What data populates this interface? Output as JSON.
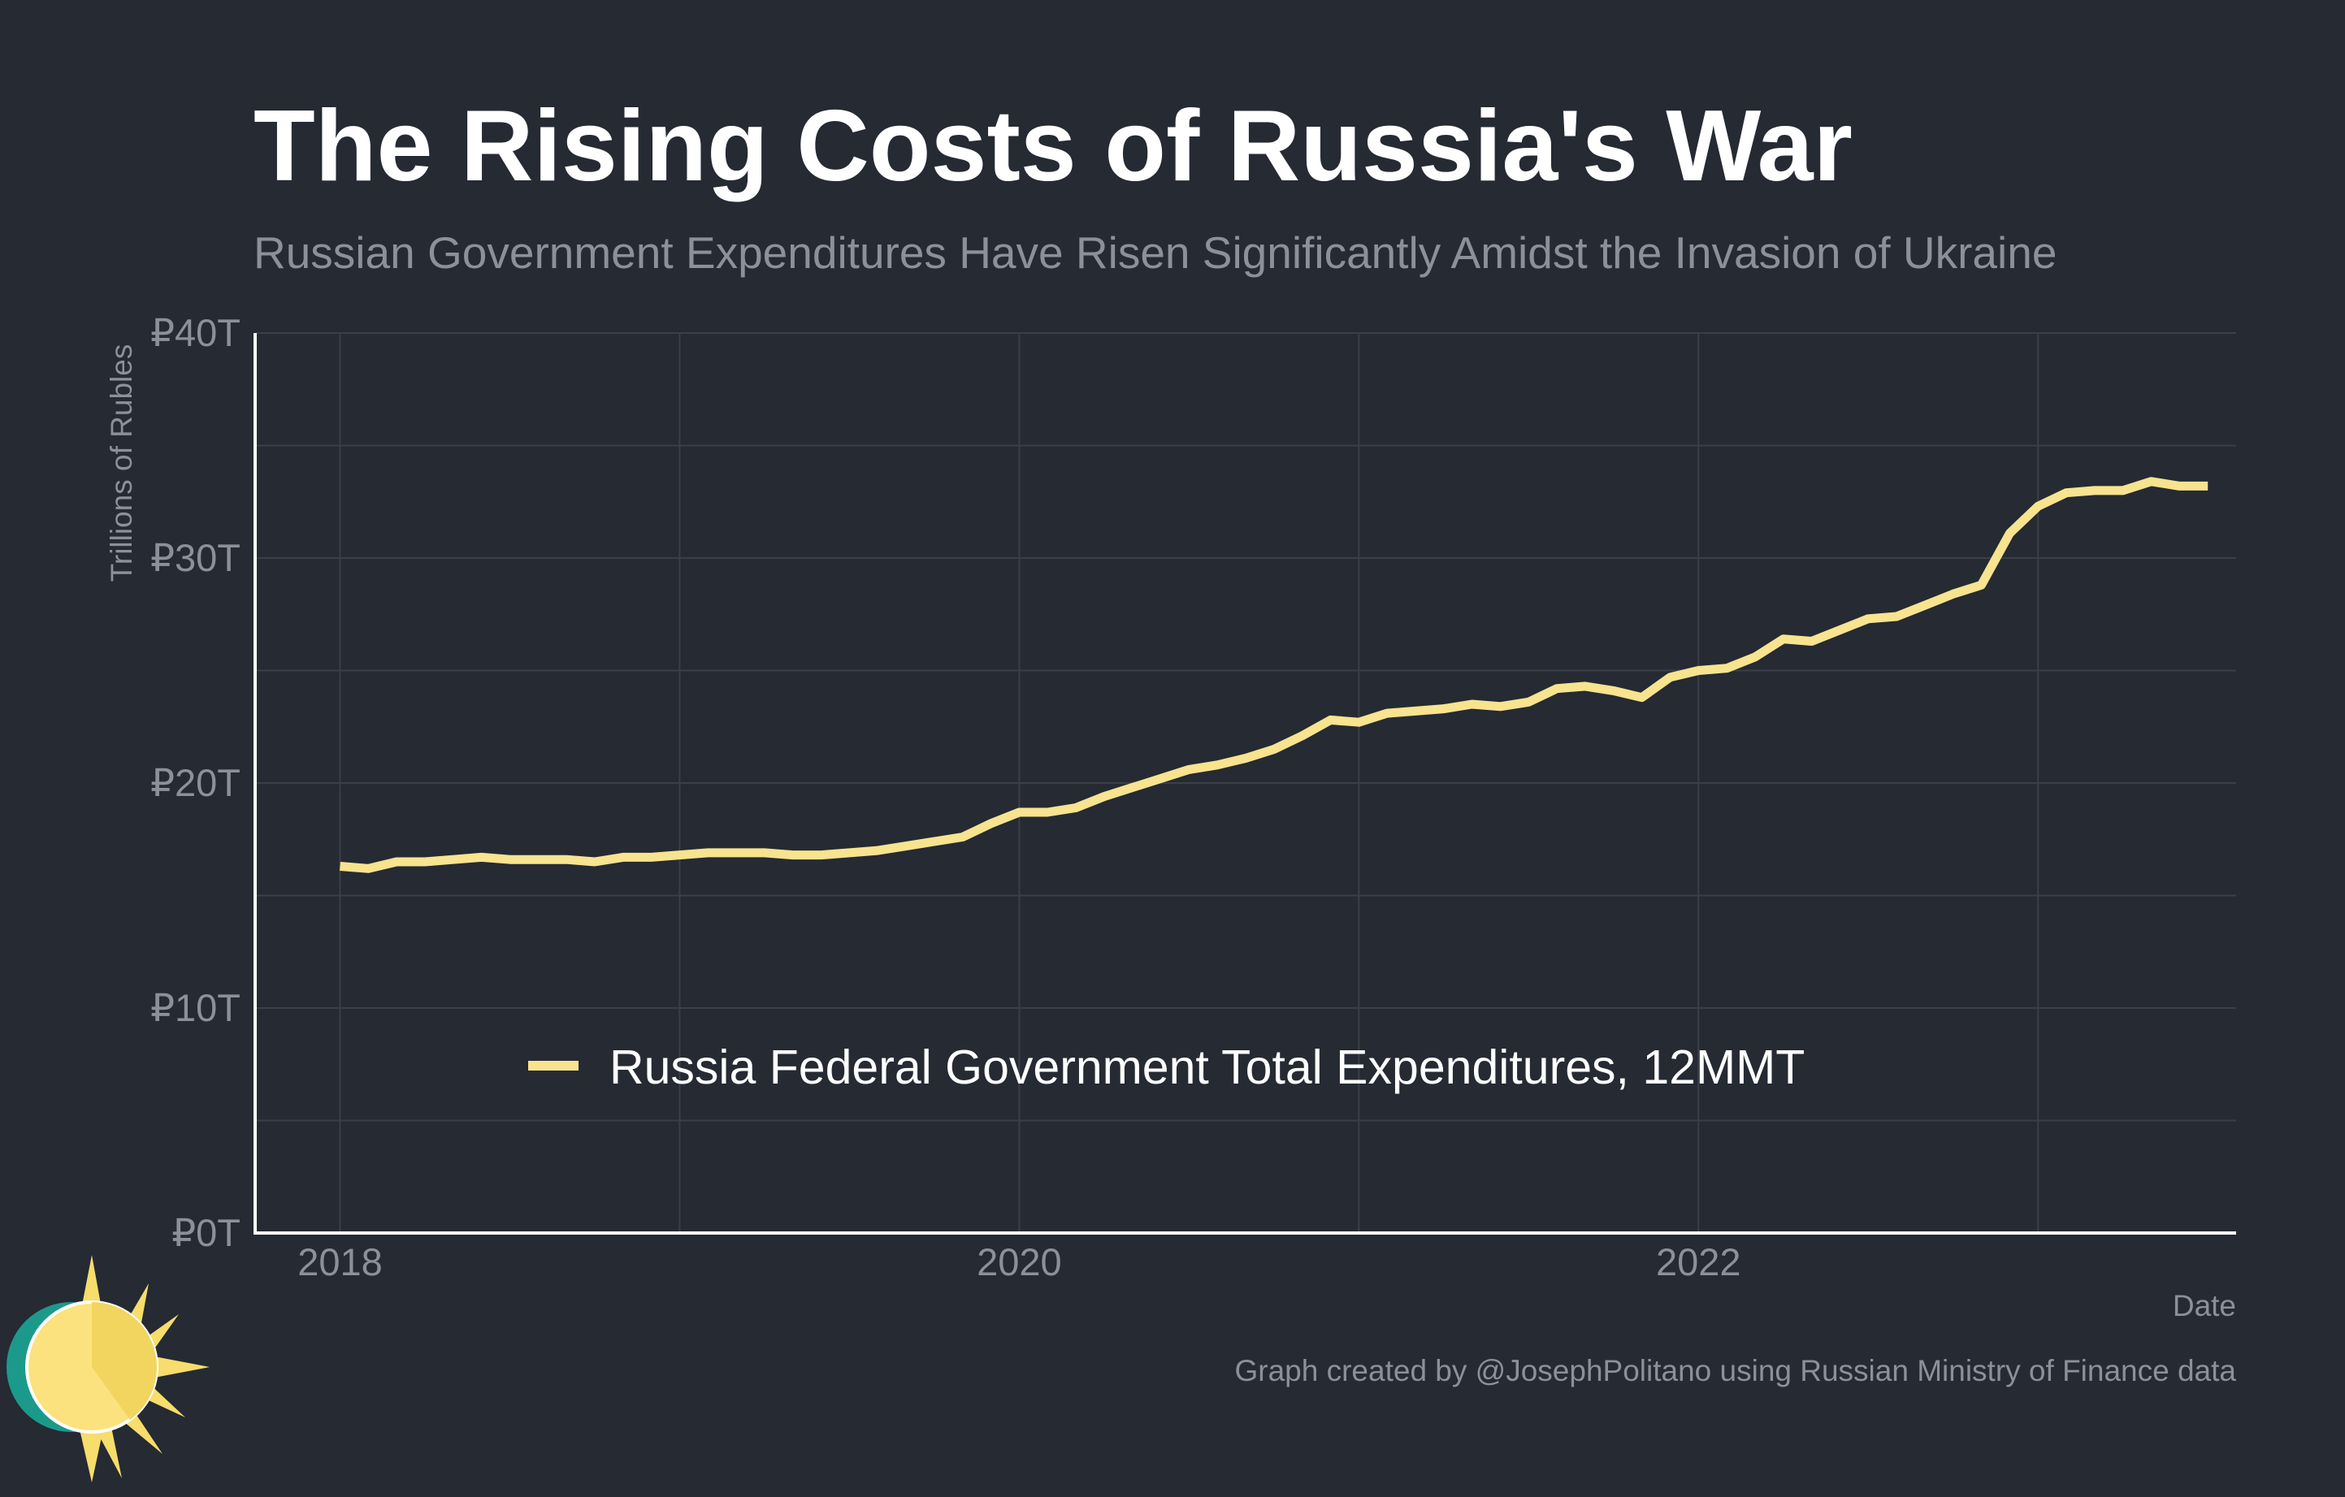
{
  "title": "The Rising Costs of Russia's War",
  "subtitle": "Russian Government Expenditures Have Risen Significantly Amidst the Invasion of Ukraine",
  "caption": "Graph created by @JosephPolitano using Russian Ministry of Finance data",
  "logo_icon": "sun-logo-icon",
  "colors": {
    "background": "#252a33",
    "line": "#f8e38f",
    "grid": "#3a3f48",
    "axis": "#ffffff",
    "muted_text": "#8c9098"
  },
  "chart_data": {
    "type": "line",
    "title": "The Rising Costs of Russia's War",
    "subtitle": "Russian Government Expenditures Have Risen Significantly Amidst the Invasion of Ukraine",
    "xlabel": "Date",
    "ylabel": "Trillions of Rubles",
    "ylim": [
      0,
      40
    ],
    "xlim": [
      "2017-10",
      "2023-08"
    ],
    "y_ticks": [
      0,
      10,
      20,
      30,
      40
    ],
    "y_tick_labels": [
      "₽0T",
      "₽10T",
      "₽20T",
      "₽30T",
      "₽40T"
    ],
    "x_ticks": [
      "2018-01",
      "2020-01",
      "2022-01"
    ],
    "x_tick_labels": [
      "2018",
      "2020",
      "2022"
    ],
    "grid": true,
    "legend_position": "bottom-center",
    "series": [
      {
        "name": "Russia Federal Government Total Expenditures, 12MMT",
        "color": "#f8e38f",
        "x": [
          "2018-01",
          "2018-02",
          "2018-03",
          "2018-04",
          "2018-05",
          "2018-06",
          "2018-07",
          "2018-08",
          "2018-09",
          "2018-10",
          "2018-11",
          "2018-12",
          "2019-01",
          "2019-02",
          "2019-03",
          "2019-04",
          "2019-05",
          "2019-06",
          "2019-07",
          "2019-08",
          "2019-09",
          "2019-10",
          "2019-11",
          "2019-12",
          "2020-01",
          "2020-02",
          "2020-03",
          "2020-04",
          "2020-05",
          "2020-06",
          "2020-07",
          "2020-08",
          "2020-09",
          "2020-10",
          "2020-11",
          "2020-12",
          "2021-01",
          "2021-02",
          "2021-03",
          "2021-04",
          "2021-05",
          "2021-06",
          "2021-07",
          "2021-08",
          "2021-09",
          "2021-10",
          "2021-11",
          "2021-12",
          "2022-01",
          "2022-02",
          "2022-03",
          "2022-04",
          "2022-05",
          "2022-06",
          "2022-07",
          "2022-08",
          "2022-09",
          "2022-10",
          "2022-11",
          "2022-12",
          "2023-01",
          "2023-02",
          "2023-03",
          "2023-04",
          "2023-05",
          "2023-06",
          "2023-07"
        ],
        "values": [
          16.3,
          16.2,
          16.5,
          16.5,
          16.6,
          16.7,
          16.6,
          16.6,
          16.6,
          16.5,
          16.7,
          16.7,
          16.8,
          16.9,
          16.9,
          16.9,
          16.8,
          16.8,
          16.9,
          17.0,
          17.2,
          17.4,
          17.6,
          18.2,
          18.7,
          18.7,
          18.9,
          19.4,
          19.8,
          20.2,
          20.6,
          20.8,
          21.1,
          21.5,
          22.1,
          22.8,
          22.7,
          23.1,
          23.2,
          23.3,
          23.5,
          23.4,
          23.6,
          24.2,
          24.3,
          24.1,
          23.8,
          24.7,
          25.0,
          25.1,
          25.6,
          26.4,
          26.3,
          26.8,
          27.3,
          27.4,
          27.9,
          28.4,
          28.8,
          31.1,
          32.3,
          32.9,
          33.0,
          33.0,
          33.4,
          33.2,
          33.2
        ]
      }
    ]
  }
}
